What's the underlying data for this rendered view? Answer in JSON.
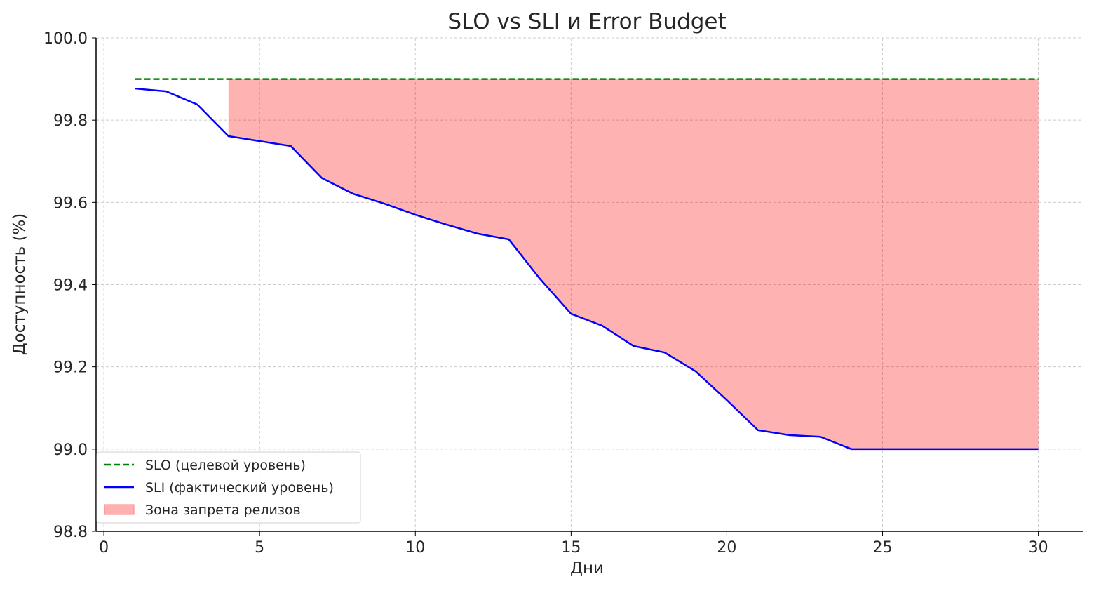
{
  "chart_data": {
    "type": "line",
    "title": "SLO vs SLI и Error Budget",
    "xlabel": "Дни",
    "ylabel": "Доступность (%)",
    "xlim": [
      -0.25,
      31.45
    ],
    "ylim": [
      98.8,
      100.0
    ],
    "xticks": [
      0,
      5,
      10,
      15,
      20,
      25,
      30
    ],
    "xtick_labels": [
      "0",
      "5",
      "10",
      "15",
      "20",
      "25",
      "30"
    ],
    "yticks": [
      98.8,
      99.0,
      99.2,
      99.4,
      99.6,
      99.8,
      100.0
    ],
    "ytick_labels": [
      "98.8",
      "99.0",
      "99.2",
      "99.4",
      "99.6",
      "99.8",
      "100.0"
    ],
    "grid": true,
    "legend_position": "bottom-left",
    "x": [
      1,
      2,
      3,
      4,
      5,
      6,
      7,
      8,
      9,
      10,
      11,
      12,
      13,
      14,
      15,
      16,
      17,
      18,
      19,
      20,
      21,
      22,
      23,
      24,
      25,
      26,
      27,
      28,
      29,
      30
    ],
    "series": [
      {
        "name": "SLO (целевой уровень)",
        "style": "dashed",
        "color": "#008000",
        "values": [
          99.9,
          99.9,
          99.9,
          99.9,
          99.9,
          99.9,
          99.9,
          99.9,
          99.9,
          99.9,
          99.9,
          99.9,
          99.9,
          99.9,
          99.9,
          99.9,
          99.9,
          99.9,
          99.9,
          99.9,
          99.9,
          99.9,
          99.9,
          99.9,
          99.9,
          99.9,
          99.9,
          99.9,
          99.9,
          99.9
        ]
      },
      {
        "name": "SLI (фактический уровень)",
        "style": "solid",
        "color": "#0000ff",
        "values": [
          99.877,
          99.87,
          99.838,
          99.761,
          99.749,
          99.737,
          99.659,
          99.621,
          99.597,
          99.57,
          99.546,
          99.524,
          99.51,
          99.414,
          99.329,
          99.3,
          99.251,
          99.235,
          99.189,
          99.119,
          99.046,
          99.034,
          99.03,
          99.0,
          99.0,
          99.0,
          99.0,
          99.0,
          99.0,
          99.0
        ]
      }
    ],
    "fill": {
      "name": "Зона запрета релизов",
      "color": "#ff0000",
      "opacity": 0.3,
      "from_day": 4,
      "to_day": 30,
      "between": [
        "SLI (фактический уровень)",
        "SLO (целевой уровень)"
      ]
    }
  }
}
